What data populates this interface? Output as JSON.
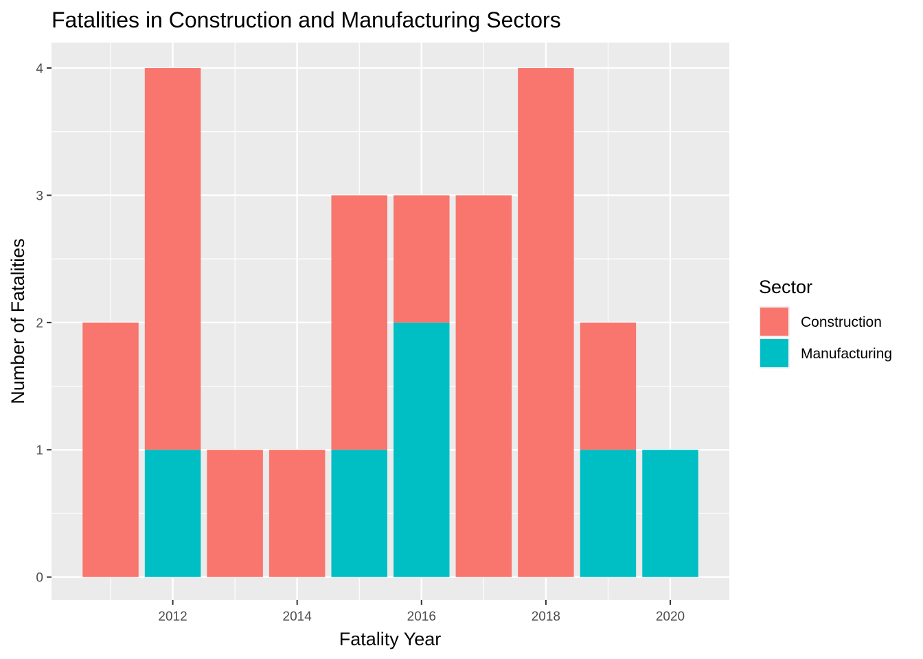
{
  "chart_data": {
    "type": "bar",
    "stacked": true,
    "title": "Fatalities in Construction and Manufacturing Sectors",
    "xlabel": "Fatality Year",
    "ylabel": "Number of Fatalities",
    "x": [
      2011,
      2012,
      2013,
      2014,
      2015,
      2016,
      2017,
      2018,
      2019,
      2020
    ],
    "x_ticks": [
      "2012",
      "2014",
      "2016",
      "2018",
      "2020"
    ],
    "y_ticks": [
      "0",
      "1",
      "2",
      "3",
      "4"
    ],
    "xlim": [
      2010.05,
      2020.95
    ],
    "ylim": [
      -0.18,
      4.2
    ],
    "grid": true,
    "legend": {
      "title": "Sector",
      "position": "right"
    },
    "series": [
      {
        "name": "Construction",
        "color": "#F8766D",
        "values": [
          2,
          3,
          1,
          1,
          2,
          1,
          3,
          4,
          1,
          0
        ]
      },
      {
        "name": "Manufacturing",
        "color": "#00BFC4",
        "values": [
          0,
          1,
          0,
          0,
          1,
          2,
          0,
          0,
          1,
          1
        ]
      }
    ]
  }
}
